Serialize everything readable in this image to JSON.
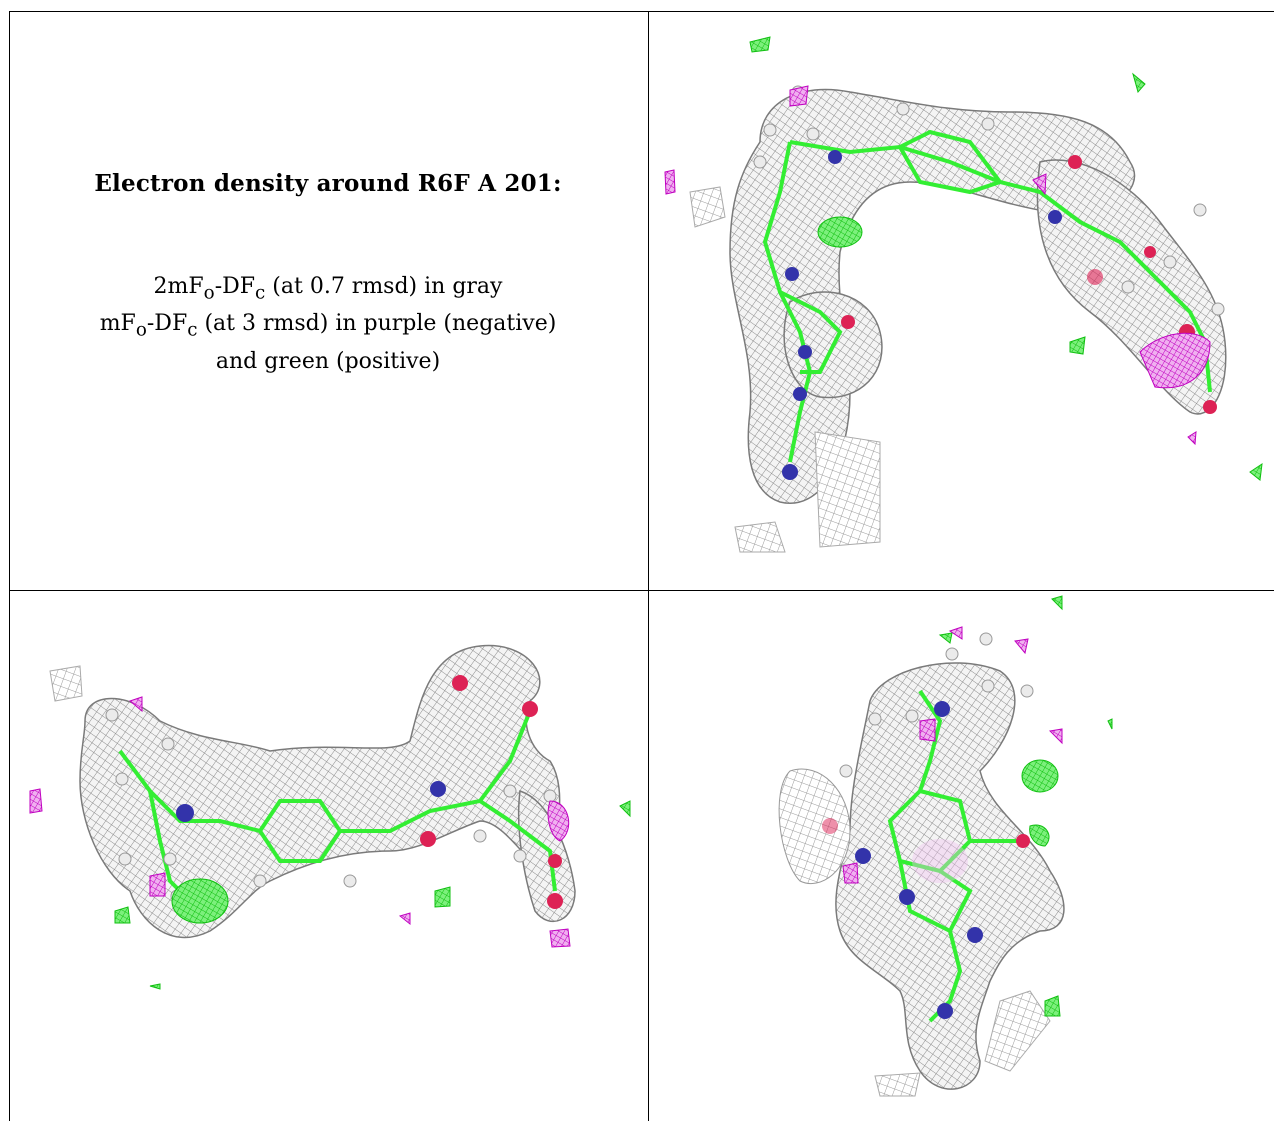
{
  "caption": {
    "title": "Electron density around R6F A 201:",
    "line1_prefix": "2mF",
    "line1_sub_o": "o",
    "line1_mid": "-DF",
    "line1_sub_c": "c",
    "line1_suffix": " (at 0.7 rmsd) in gray",
    "line2_prefix": "mF",
    "line2_sub_o": "o",
    "line2_mid": "-DF",
    "line2_sub_c": "c",
    "line2_suffix": " (at 3 rmsd) in purple (negative)",
    "line3": "and green (positive)"
  },
  "panels": [
    {
      "name": "density-view-top-right",
      "description_hidden": true
    },
    {
      "name": "density-view-bottom-left",
      "description_hidden": true
    },
    {
      "name": "density-view-bottom-right",
      "description_hidden": true
    }
  ],
  "colors": {
    "mesh_gray": "#a0a0a0",
    "negative_purple": "#cc00cc",
    "positive_green": "#22dd22",
    "carbon_green": "#33ee33",
    "nitrogen_blue": "#3333aa",
    "oxygen_red": "#dd2255",
    "hydrogen_white": "#e8e8e8"
  }
}
